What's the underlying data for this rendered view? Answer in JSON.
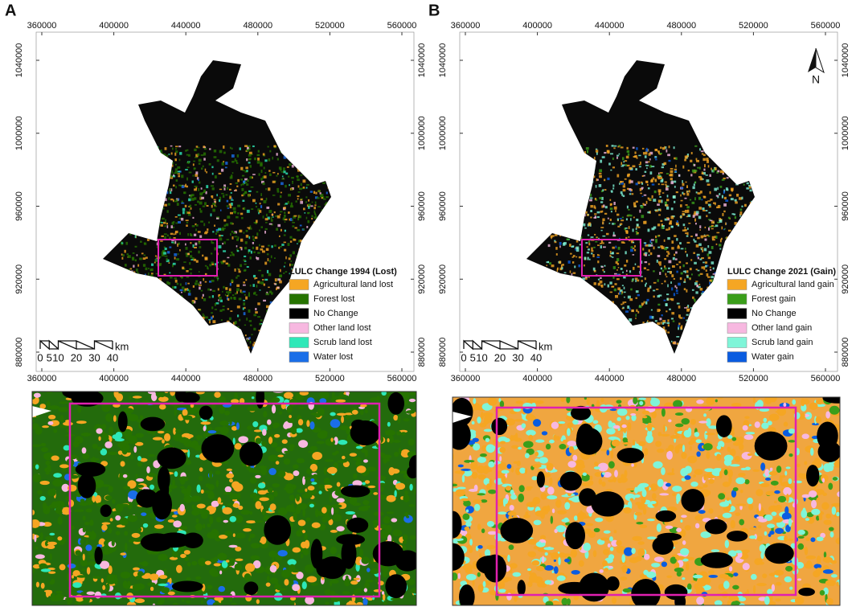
{
  "panels": [
    {
      "label": "A",
      "xticks": [
        360000,
        400000,
        440000,
        480000,
        520000,
        560000
      ],
      "yticks": [
        880000,
        920000,
        960000,
        1000000,
        1040000
      ],
      "legend": {
        "title": "LULC Change 1994 (Lost)",
        "items": [
          {
            "name": "Agricultural land lost",
            "color": "#f5a623"
          },
          {
            "name": "Forest lost",
            "color": "#267300"
          },
          {
            "name": "No Change",
            "color": "#000000"
          },
          {
            "name": "Other land lost",
            "color": "#f7b8e0"
          },
          {
            "name": "Scrub land  lost",
            "color": "#2ee8b8"
          },
          {
            "name": "Water lost",
            "color": "#1a6ee8"
          }
        ]
      },
      "scale": {
        "ticks": [
          0,
          5,
          10,
          20,
          30,
          40
        ],
        "unit": "km"
      }
    },
    {
      "label": "B",
      "xticks": [
        360000,
        400000,
        440000,
        480000,
        520000,
        560000
      ],
      "yticks": [
        880000,
        920000,
        960000,
        1000000,
        1040000
      ],
      "north": "N",
      "legend": {
        "title": "LULC Change 2021 (Gain)",
        "items": [
          {
            "name": "Agricultural land gain",
            "color": "#f5a623"
          },
          {
            "name": "Forest gain",
            "color": "#3a9e1a"
          },
          {
            "name": "No Change",
            "color": "#000000"
          },
          {
            "name": "Other land gain",
            "color": "#f7b8e0"
          },
          {
            "name": "Scrub land gain",
            "color": "#7ff5d8"
          },
          {
            "name": "Water gain",
            "color": "#0a5ce0"
          }
        ]
      },
      "scale": {
        "ticks": [
          0,
          5,
          10,
          20,
          30,
          40
        ],
        "unit": "km"
      }
    }
  ]
}
